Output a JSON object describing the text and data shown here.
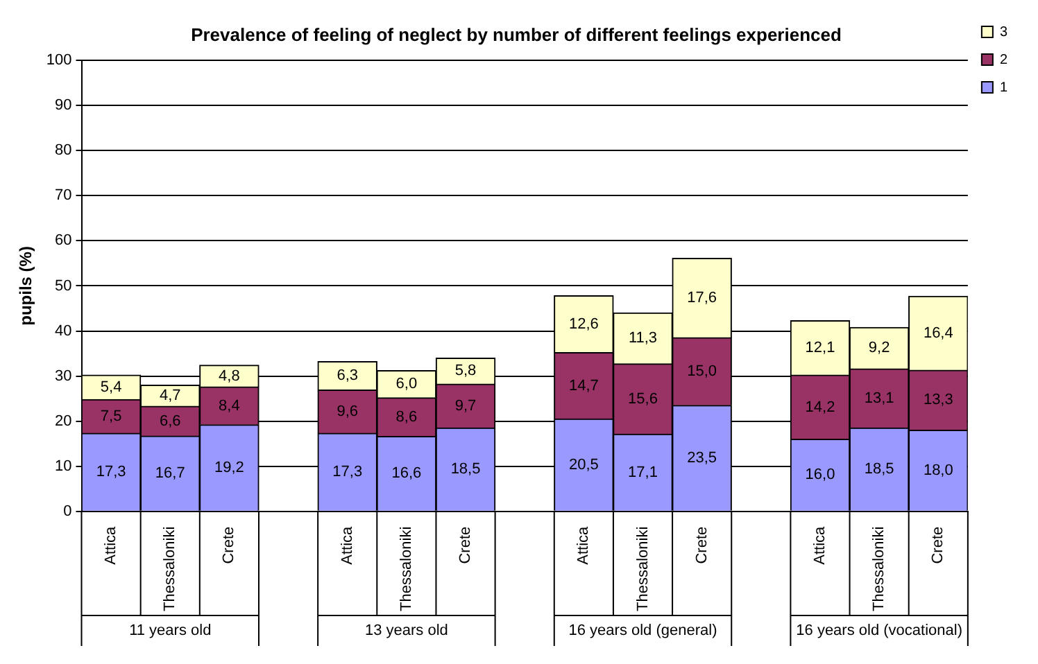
{
  "chart_data": {
    "type": "bar",
    "stacked": true,
    "title": "Prevalence of feeling of neglect by number of different feelings experienced",
    "ylabel": "pupils (%)",
    "categories": [
      "Attica",
      "Thessaloniki",
      "Crete",
      null,
      "Attica",
      "Thessaloniki",
      "Crete",
      null,
      "Attica",
      "Thessaloniki",
      "Crete",
      null,
      "Attica",
      "Thessaloniki",
      "Crete"
    ],
    "annotations": [
      "11 years old",
      "13 years old",
      "16 years old (general)",
      "16 years old (vocational)"
    ],
    "series": [
      {
        "name": "1",
        "color": "#9999ff",
        "values": [
          17.3,
          16.7,
          19.2,
          null,
          17.3,
          16.6,
          18.5,
          null,
          20.5,
          17.1,
          23.5,
          null,
          16.0,
          18.5,
          18.0
        ],
        "value_labels": [
          "17,3",
          "16,7",
          "19,2",
          null,
          "17,3",
          "16,6",
          "18,5",
          null,
          "20,5",
          "17,1",
          "23,5",
          null,
          "16,0",
          "18,5",
          "18,0"
        ]
      },
      {
        "name": "2",
        "color": "#993366",
        "values": [
          7.5,
          6.6,
          8.4,
          null,
          9.6,
          8.6,
          9.7,
          null,
          14.7,
          15.6,
          15.0,
          null,
          14.2,
          13.1,
          13.3
        ],
        "value_labels": [
          "7,5",
          "6,6",
          "8,4",
          null,
          "9,6",
          "8,6",
          "9,7",
          null,
          "14,7",
          "15,6",
          "15,0",
          null,
          "14,2",
          "13,1",
          "13,3"
        ]
      },
      {
        "name": "3",
        "color": "#ffffcc",
        "values": [
          5.4,
          4.7,
          4.8,
          null,
          6.3,
          6.0,
          5.8,
          null,
          12.6,
          11.3,
          17.6,
          null,
          12.1,
          9.2,
          16.4
        ],
        "value_labels": [
          "5,4",
          "4,7",
          "4,8",
          null,
          "6,3",
          "6,0",
          "5,8",
          null,
          "12,6",
          "11,3",
          "17,6",
          null,
          "12,1",
          "9,2",
          "16,4"
        ]
      }
    ],
    "ylim": [
      0,
      100
    ],
    "yticks": [
      0,
      10,
      20,
      30,
      40,
      50,
      60,
      70,
      80,
      90,
      100
    ],
    "grid": "y",
    "legend": "top right"
  }
}
